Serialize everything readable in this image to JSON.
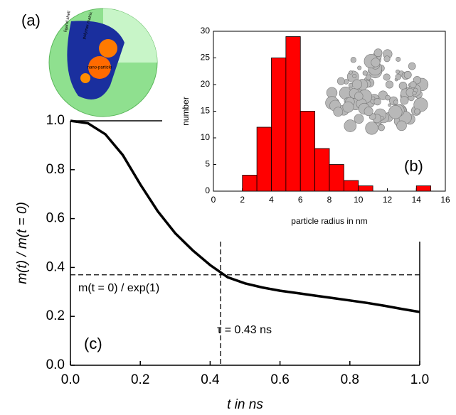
{
  "chart_data": [
    {
      "type": "line",
      "panel_label": "(c)",
      "x_label": "t in ns",
      "y_label": "m(t) / m(t = 0)",
      "x": [
        0,
        0.05,
        0.1,
        0.15,
        0.2,
        0.25,
        0.3,
        0.35,
        0.4,
        0.45,
        0.5,
        0.55,
        0.6,
        0.65,
        0.7,
        0.75,
        0.8,
        0.85,
        0.9,
        0.95,
        1.0
      ],
      "values": [
        1.0,
        0.99,
        0.945,
        0.86,
        0.74,
        0.63,
        0.54,
        0.47,
        0.41,
        0.36,
        0.335,
        0.318,
        0.305,
        0.295,
        0.285,
        0.275,
        0.265,
        0.255,
        0.243,
        0.23,
        0.218
      ],
      "color": "#000000",
      "xlim": [
        0,
        1
      ],
      "ylim": [
        0,
        1
      ],
      "xticks": [
        {
          "value": 0,
          "label": "0.0"
        },
        0.2,
        0.4,
        0.6,
        0.8,
        {
          "value": 1,
          "label": "1.0"
        }
      ],
      "yticks": [
        {
          "value": 0,
          "label": "0.0"
        },
        0.2,
        0.4,
        0.6,
        0.8,
        {
          "value": 1,
          "label": "1.0"
        }
      ],
      "annotations": [
        {
          "text": "m(t = 0) / exp(1)",
          "y": 0.37
        },
        {
          "text": "τ = 0.43 ns",
          "x": 0.43
        }
      ]
    },
    {
      "type": "histogram",
      "panel_label": "(b)",
      "x_label": "particle radius in nm",
      "y_label": "number",
      "bins": [
        2,
        3,
        4,
        5,
        6,
        7,
        8,
        9,
        10,
        11,
        12,
        13,
        14,
        15
      ],
      "values": [
        3,
        12,
        25,
        29,
        15,
        8,
        5,
        2,
        1,
        0,
        0,
        0,
        1
      ],
      "color": "#ff0000",
      "xlim": [
        0,
        16
      ],
      "ylim": [
        0,
        30
      ],
      "xticks": [
        0,
        2,
        4,
        6,
        8,
        10,
        12,
        14,
        16
      ],
      "yticks": [
        0,
        5,
        10,
        15,
        20,
        25,
        30
      ]
    }
  ],
  "schematic": {
    "panel_label": "(a)",
    "labels": [
      "ligand shell",
      "polymer matrix",
      "nano-particle"
    ]
  }
}
